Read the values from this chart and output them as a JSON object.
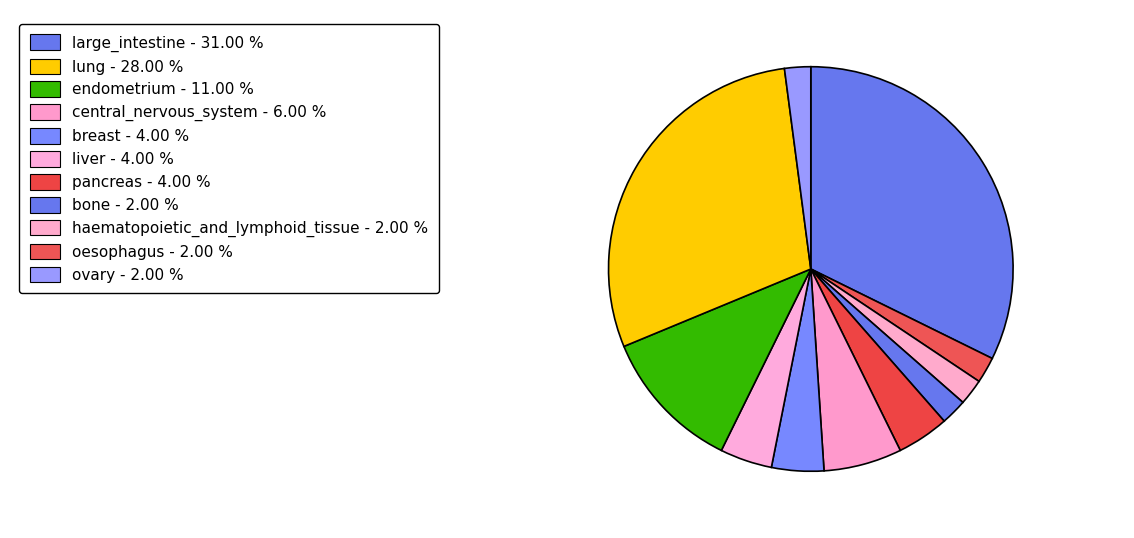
{
  "labels": [
    "large_intestine",
    "oesophagus",
    "haematopoietic_and_lymphoid_tissue",
    "bone",
    "pancreas",
    "central_nervous_system",
    "breast",
    "liver",
    "endometrium",
    "lung",
    "ovary"
  ],
  "values": [
    31,
    2,
    2,
    2,
    4,
    6,
    4,
    4,
    11,
    28,
    2
  ],
  "colors": [
    "#6677ee",
    "#ee5555",
    "#ffaacc",
    "#6677ee",
    "#ee4444",
    "#ff99cc",
    "#7788ff",
    "#ffaadd",
    "#33bb00",
    "#ffcc00",
    "#9999ff"
  ],
  "legend_labels": [
    "large_intestine - 31.00 %",
    "lung - 28.00 %",
    "endometrium - 11.00 %",
    "central_nervous_system - 6.00 %",
    "breast - 4.00 %",
    "liver - 4.00 %",
    "pancreas - 4.00 %",
    "bone - 2.00 %",
    "haematopoietic_and_lymphoid_tissue - 2.00 %",
    "oesophagus - 2.00 %",
    "ovary - 2.00 %"
  ],
  "legend_colors": [
    "#6677ee",
    "#ffcc00",
    "#33bb00",
    "#ff99cc",
    "#7788ff",
    "#ffaadd",
    "#ee4444",
    "#6677ee",
    "#ffaacc",
    "#ee5555",
    "#9999ff"
  ],
  "background_color": "#ffffff",
  "figsize": [
    11.34,
    5.38
  ],
  "dpi": 100
}
